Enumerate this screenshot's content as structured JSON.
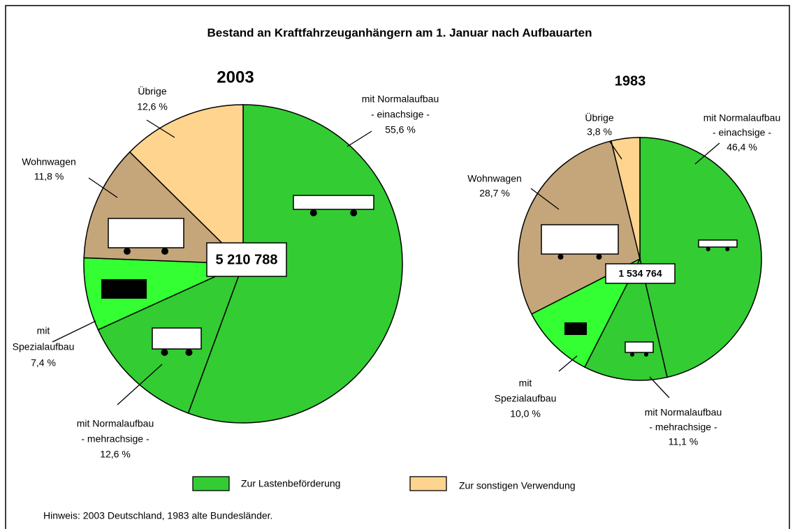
{
  "title": "Bestand an Kraftfahrzeuganhängern am 1. Januar nach Aufbauarten",
  "chart_data": [
    {
      "type": "pie",
      "title": "2003",
      "total": "5 210 788",
      "categories": [
        [
          "mit Normalaufbau",
          "- einachsige -"
        ],
        [
          "mit Normalaufbau",
          "- mehrachsige -"
        ],
        [
          "mit",
          "Spezialaufbau"
        ],
        [
          "Wohnwagen"
        ],
        [
          "Übrige"
        ]
      ],
      "values": [
        55.6,
        12.6,
        7.4,
        11.8,
        12.6
      ],
      "value_labels": [
        "55,6 %",
        "12,6 %",
        "7,4 %",
        "11,8 %",
        "12,6 %"
      ],
      "colors": [
        "#33cc33",
        "#33cc33",
        "#33ff33",
        "#c4a67a",
        "#ffd48e"
      ]
    },
    {
      "type": "pie",
      "title": "1983",
      "total": "1 534 764",
      "categories": [
        [
          "mit Normalaufbau",
          "- einachsige -"
        ],
        [
          "mit Normalaufbau",
          "- mehrachsige -"
        ],
        [
          "mit",
          "Spezialaufbau"
        ],
        [
          "Wohnwagen"
        ],
        [
          "Übrige"
        ]
      ],
      "values": [
        46.4,
        11.1,
        10.0,
        28.7,
        3.8
      ],
      "value_labels": [
        "46,4 %",
        "11,1 %",
        "10,0 %",
        "28,7 %",
        "3,8 %"
      ],
      "colors": [
        "#33cc33",
        "#33cc33",
        "#33ff33",
        "#c4a67a",
        "#ffd48e"
      ]
    }
  ],
  "legend": [
    {
      "name": "Zur Lastenbeförderung",
      "color": "#33cc33"
    },
    {
      "name": "Zur sonstigen Verwendung",
      "color": "#ffd48e"
    }
  ],
  "note": "Hinweis: 2003 Deutschland, 1983 alte Bundesländer."
}
